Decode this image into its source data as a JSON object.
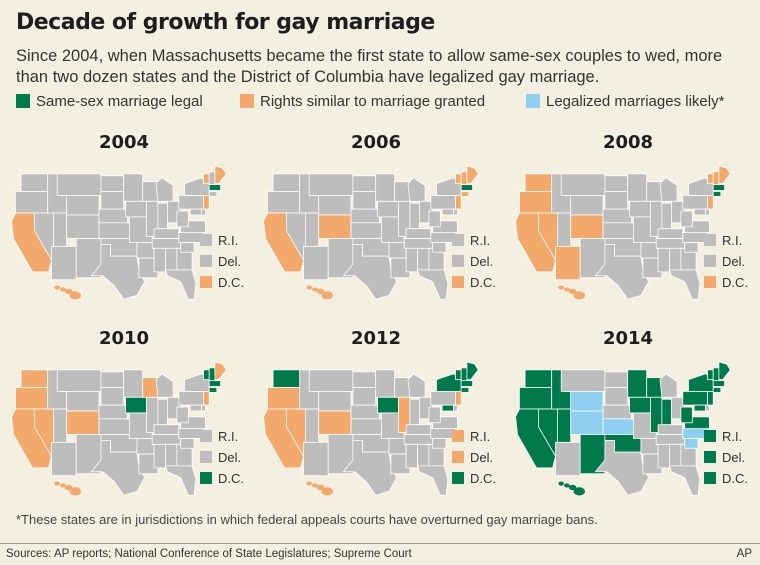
{
  "header": {
    "title": "Decade of growth for gay marriage",
    "subtitle": "Since 2004, when Massachusetts became the first state to allow same-sex couples to wed, more than two dozen states and the District of Columbia have legalized gay marriage."
  },
  "legend": {
    "items": [
      {
        "label": "Same-sex marriage legal",
        "color": "#007a4d"
      },
      {
        "label": "Rights similar to marriage granted",
        "color": "#f2a96b"
      },
      {
        "label": "Legalized marriages likely*",
        "color": "#8ecff0"
      }
    ]
  },
  "colors": {
    "base": "#bdbdbd",
    "legal": "#007a4d",
    "similar": "#f2a96b",
    "likely": "#8ecff0"
  },
  "panels": [
    {
      "year": "2004",
      "legal": [
        "MA"
      ],
      "similar": [
        "CA",
        "VT",
        "ME",
        "NJ",
        "HI"
      ],
      "likely": [],
      "small": [
        {
          "label": "R.I.",
          "status": "base"
        },
        {
          "label": "Del.",
          "status": "base"
        },
        {
          "label": "D.C.",
          "status": "similar"
        }
      ]
    },
    {
      "year": "2006",
      "legal": [
        "MA"
      ],
      "similar": [
        "CA",
        "CO",
        "VT",
        "ME",
        "NH",
        "NJ",
        "CT",
        "HI"
      ],
      "likely": [],
      "small": [
        {
          "label": "R.I.",
          "status": "base"
        },
        {
          "label": "Del.",
          "status": "base"
        },
        {
          "label": "D.C.",
          "status": "similar"
        }
      ]
    },
    {
      "year": "2008",
      "legal": [
        "MA",
        "CT"
      ],
      "similar": [
        "WA",
        "OR",
        "CA",
        "NV",
        "CO",
        "AZ",
        "VT",
        "NH",
        "ME",
        "NJ",
        "HI"
      ],
      "likely": [],
      "small": [
        {
          "label": "R.I.",
          "status": "base"
        },
        {
          "label": "Del.",
          "status": "base"
        },
        {
          "label": "D.C.",
          "status": "similar"
        }
      ]
    },
    {
      "year": "2010",
      "legal": [
        "IA",
        "MA",
        "CT",
        "VT",
        "NH"
      ],
      "similar": [
        "WA",
        "OR",
        "CA",
        "NV",
        "CO",
        "WI",
        "ME",
        "NJ",
        "HI"
      ],
      "likely": [],
      "small": [
        {
          "label": "R.I.",
          "status": "base"
        },
        {
          "label": "Del.",
          "status": "base"
        },
        {
          "label": "D.C.",
          "status": "legal"
        }
      ]
    },
    {
      "year": "2012",
      "legal": [
        "WA",
        "IA",
        "NY",
        "MA",
        "CT",
        "VT",
        "NH",
        "ME",
        "MD"
      ],
      "similar": [
        "OR",
        "CA",
        "NV",
        "CO",
        "IL",
        "NJ",
        "HI"
      ],
      "likely": [],
      "small": [
        {
          "label": "R.I.",
          "status": "similar"
        },
        {
          "label": "Del.",
          "status": "similar"
        },
        {
          "label": "D.C.",
          "status": "legal"
        }
      ]
    },
    {
      "year": "2014",
      "legal": [
        "WA",
        "OR",
        "CA",
        "ID",
        "NV",
        "UT",
        "NM",
        "OK",
        "MN",
        "IA",
        "WI",
        "IL",
        "IN",
        "PA",
        "NY",
        "VA",
        "WV",
        "MD",
        "NJ",
        "MA",
        "CT",
        "VT",
        "NH",
        "ME",
        "HI"
      ],
      "similar": [],
      "likely": [
        "WY",
        "CO",
        "KS",
        "SC",
        "NC"
      ],
      "small": [
        {
          "label": "R.I.",
          "status": "legal"
        },
        {
          "label": "Del.",
          "status": "legal"
        },
        {
          "label": "D.C.",
          "status": "legal"
        }
      ]
    }
  ],
  "footnote": "*These states are in jurisdictions in which federal appeals courts have overturned gay marriage bans.",
  "footer": {
    "sources": "Sources: AP reports; National Conference of State Legislatures; Supreme Court",
    "credit": "AP"
  }
}
